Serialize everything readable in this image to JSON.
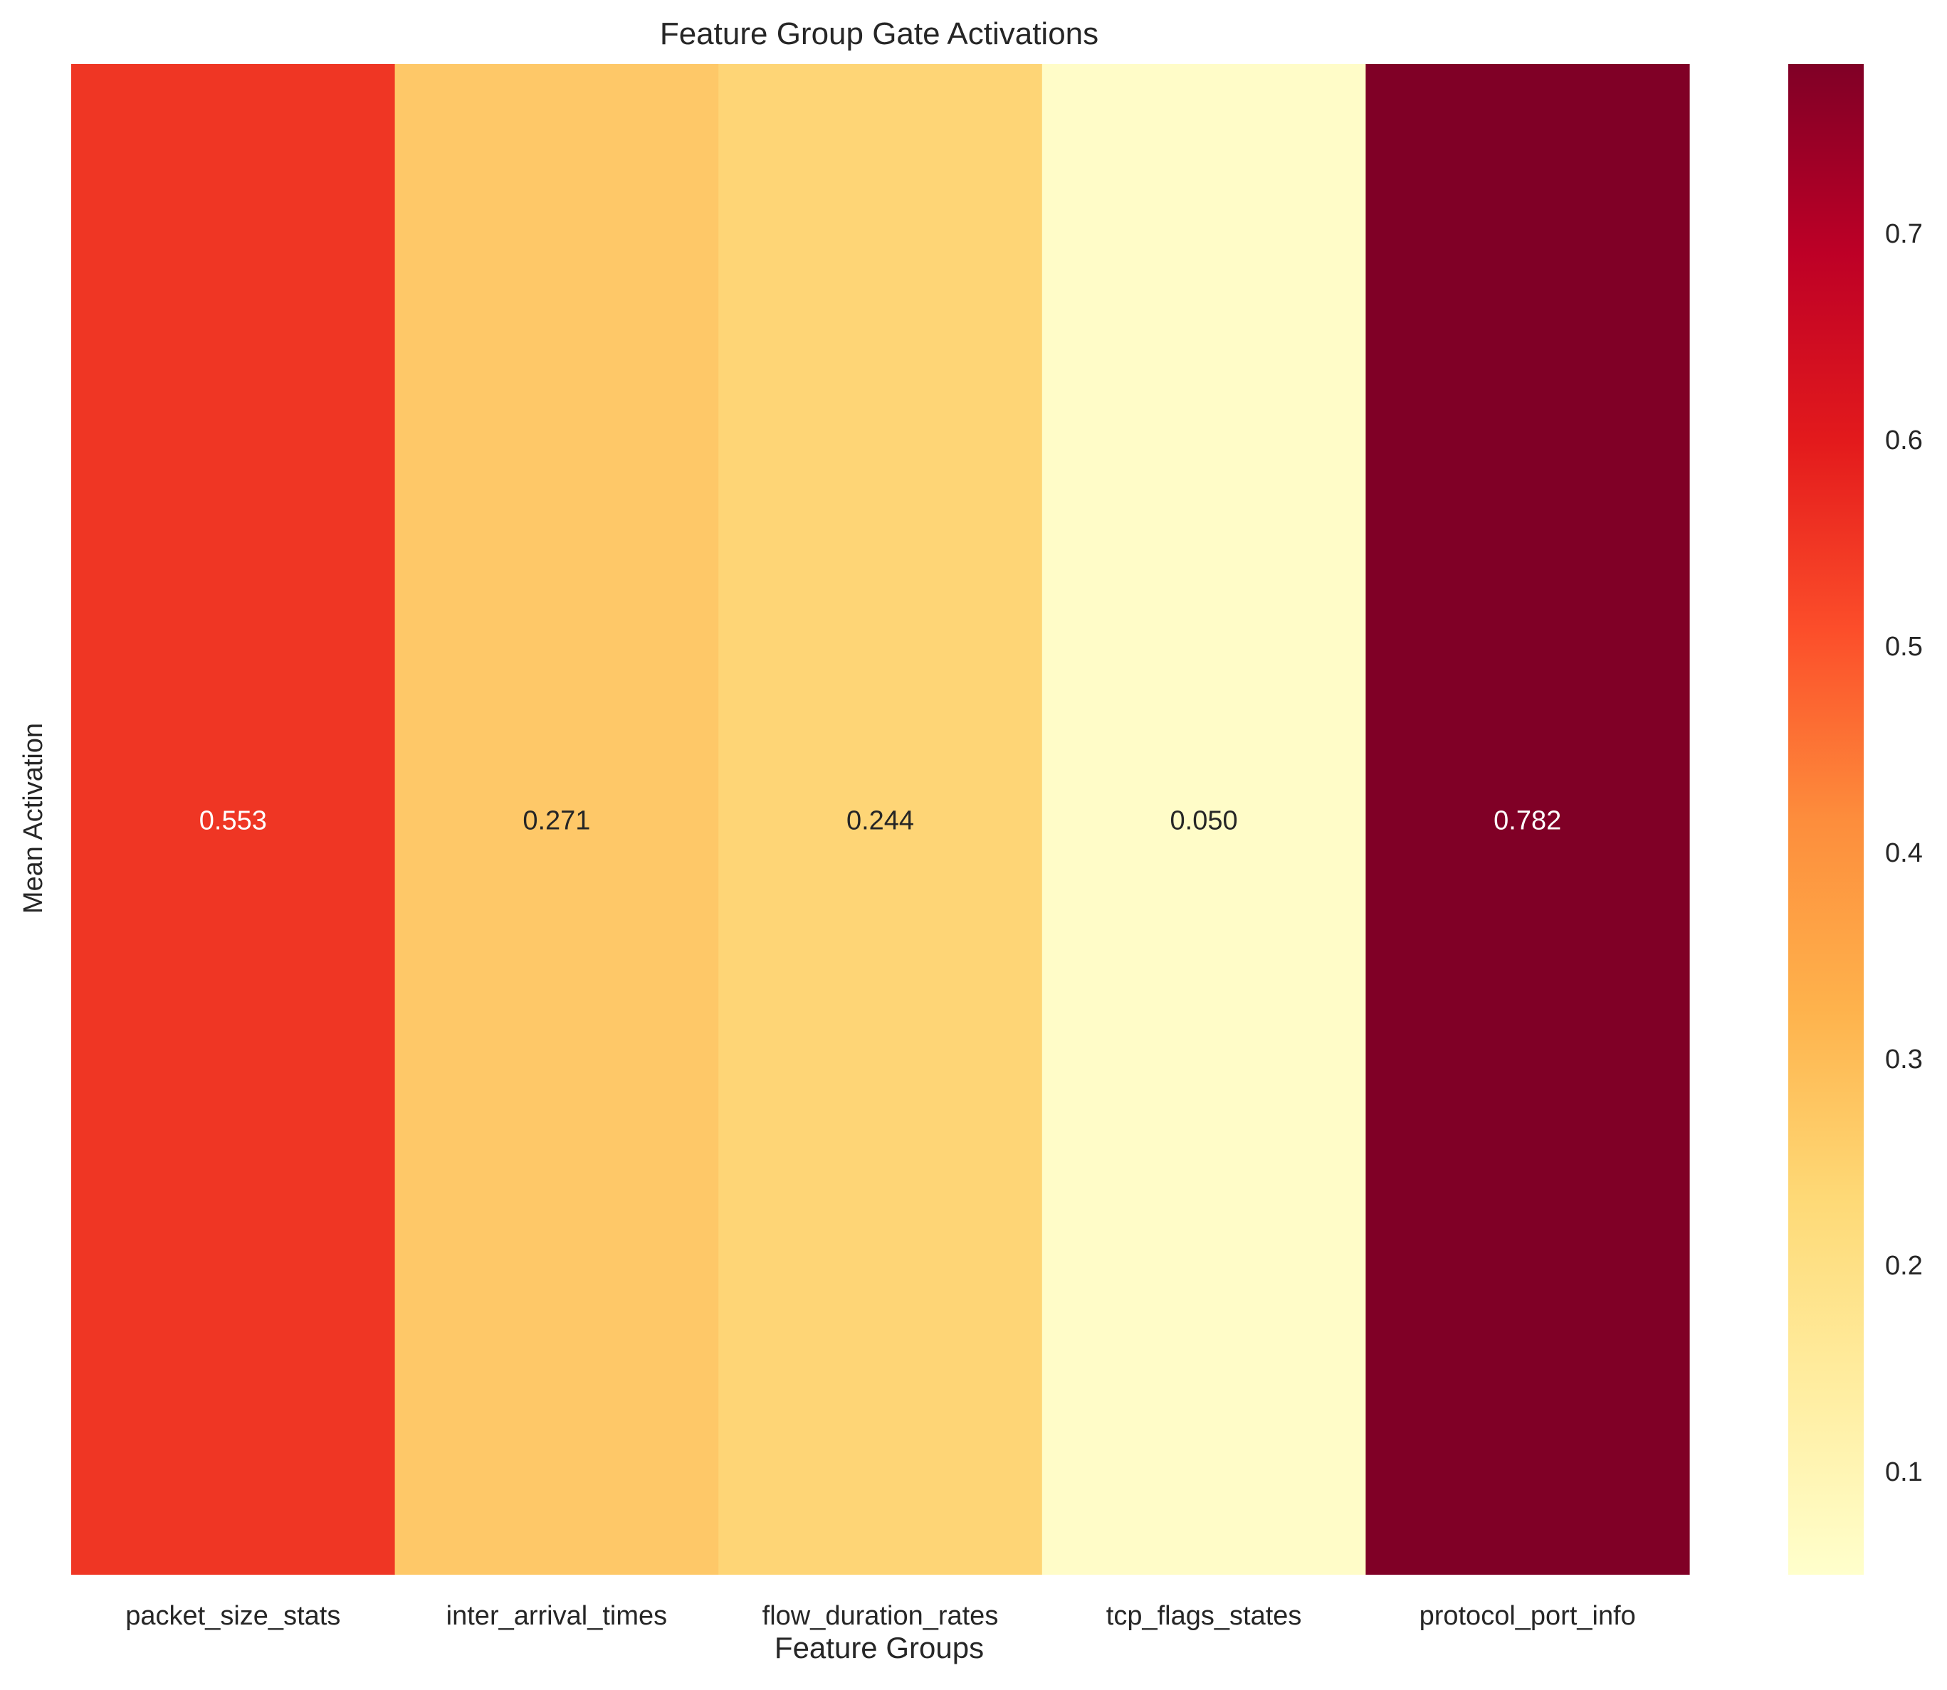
{
  "chart_data": {
    "type": "heatmap",
    "title": "Feature Group Gate Activations",
    "xlabel": "Feature Groups",
    "ylabel": "Mean Activation",
    "categories": [
      "packet_size_stats",
      "inter_arrival_times",
      "flow_duration_rates",
      "tcp_flags_states",
      "protocol_port_info"
    ],
    "values": [
      0.553,
      0.271,
      0.244,
      0.05,
      0.782
    ],
    "value_labels": [
      "0.553",
      "0.271",
      "0.244",
      "0.050",
      "0.782"
    ],
    "colormap": "YlOrRd",
    "color_range": [
      0.05,
      0.782
    ],
    "colorbar_ticks": [
      0.1,
      0.2,
      0.3,
      0.4,
      0.5,
      0.6,
      0.7
    ],
    "colorbar_tick_labels": [
      "0.1",
      "0.2",
      "0.3",
      "0.4",
      "0.5",
      "0.6",
      "0.7"
    ],
    "colors": {
      "cells": [
        "#ef3624",
        "#fec868",
        "#fed576",
        "#fffcc8",
        "#800026"
      ],
      "annotation_dark": "#262626",
      "annotation_light": "#ffffff"
    }
  }
}
